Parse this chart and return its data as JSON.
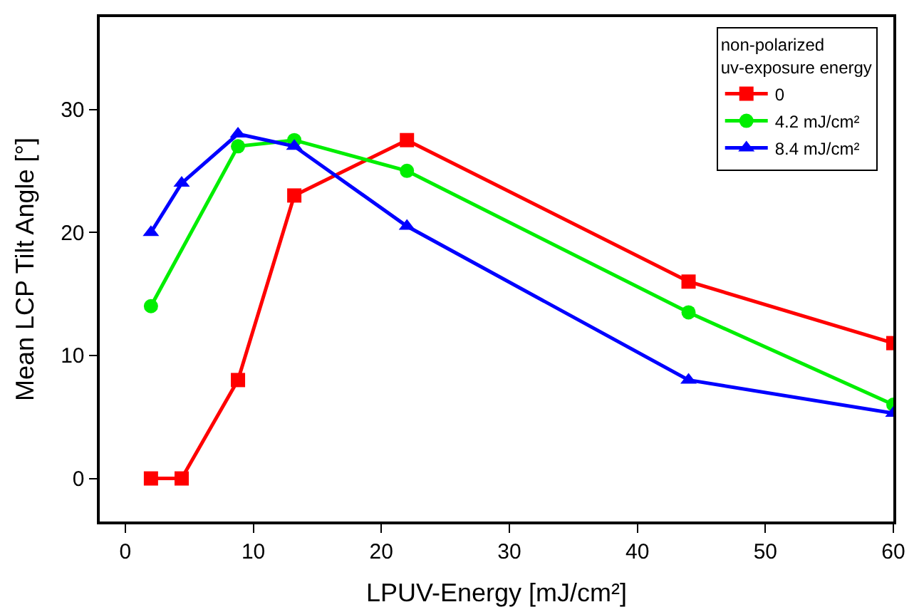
{
  "chart_data": {
    "type": "line",
    "xlabel": "LPUV-Energy [mJ/cm²]",
    "ylabel": "Mean LCP Tilt Angle [°]",
    "legend_title": "non-polarized\nuv-exposure energy",
    "x": [
      2,
      4.4,
      8.8,
      13.2,
      22,
      44,
      60
    ],
    "xlim": [
      -2,
      60
    ],
    "xticks": [
      0,
      10,
      20,
      30,
      40,
      50,
      60
    ],
    "ylim": [
      -3.5,
      37.5
    ],
    "yticks": [
      0,
      10,
      20,
      30
    ],
    "grid": false,
    "legend": "top right",
    "series": [
      {
        "name": "0",
        "color": "#ff0000",
        "marker": "square",
        "values": [
          0,
          0,
          8,
          23,
          27.5,
          16,
          11
        ]
      },
      {
        "name": "4.2 mJ/cm²",
        "color": "#00ee00",
        "marker": "circle",
        "x": [
          2,
          8.8,
          13.2,
          22,
          44,
          60
        ],
        "values": [
          14,
          27,
          27.5,
          25,
          13.5,
          6
        ]
      },
      {
        "name": "8.4 mJ/cm²",
        "color": "#0000ff",
        "marker": "triangle",
        "values": [
          20,
          24,
          28,
          27,
          20.5,
          8,
          5.3
        ]
      }
    ]
  }
}
